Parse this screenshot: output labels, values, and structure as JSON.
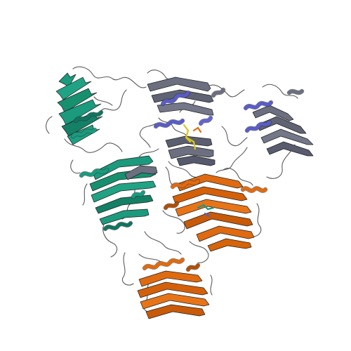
{
  "image": {
    "description_type": "protein-ribbon-cartoon",
    "background": "#ffffff"
  },
  "colors": {
    "teal": "#1b9a7e",
    "teal_dark": "#117460",
    "slate": "#6b6f80",
    "slate_dark": "#4c5060",
    "blue": "#5a5cc8",
    "orange": "#e06a10",
    "orange_dark": "#b04f08",
    "yellow": "#d9c61a",
    "coil": "#5a5a5a"
  },
  "domains": [
    {
      "id": "teal-upper-left",
      "color": "teal"
    },
    {
      "id": "slate-top-center",
      "color": "slate"
    },
    {
      "id": "slate-right",
      "color": "slate"
    },
    {
      "id": "teal-center-left",
      "color": "teal"
    },
    {
      "id": "orange-center-right",
      "color": "orange"
    },
    {
      "id": "orange-bottom",
      "color": "orange"
    }
  ]
}
